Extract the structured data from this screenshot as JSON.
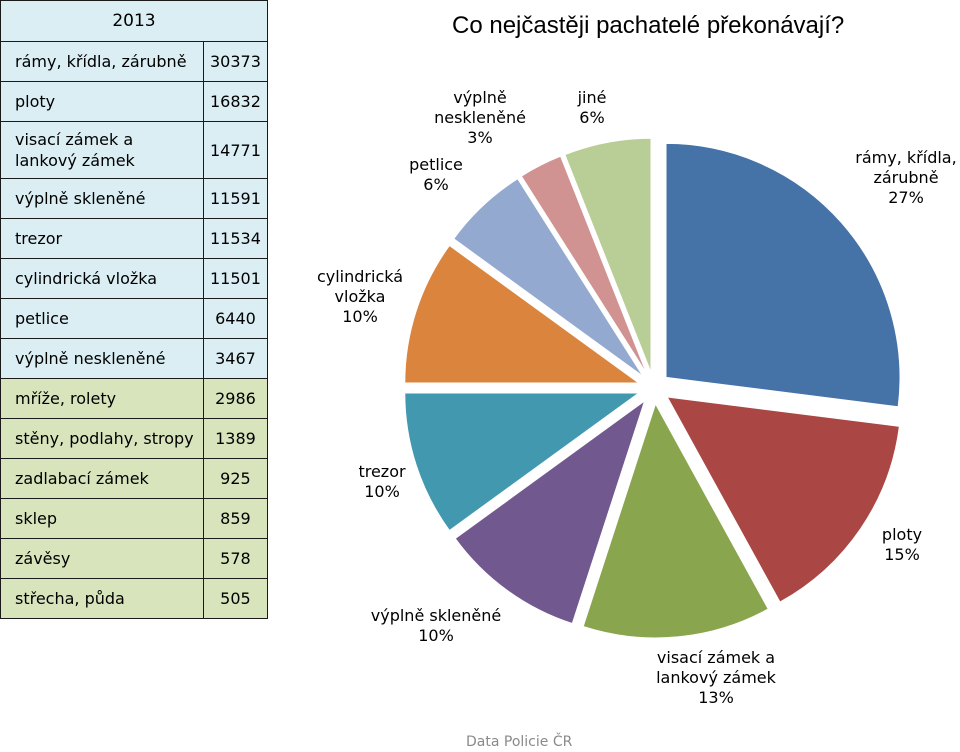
{
  "table": {
    "year": "2013",
    "rows": [
      {
        "label": "rámy, křídla, zárubně",
        "value": "30373"
      },
      {
        "label": "ploty",
        "value": "16832"
      },
      {
        "label": "visací zámek a lankový zámek",
        "value": "14771"
      },
      {
        "label": "výplně skleněné",
        "value": "11591"
      },
      {
        "label": "trezor",
        "value": "11534"
      },
      {
        "label": "cylindrická vložka",
        "value": "11501"
      },
      {
        "label": "petlice",
        "value": "6440"
      },
      {
        "label": "výplně neskleněné",
        "value": "3467"
      },
      {
        "label": "mříže, rolety",
        "value": "2986"
      },
      {
        "label": "stěny, podlahy, stropy",
        "value": "1389"
      },
      {
        "label": "zadlabací zámek",
        "value": "925"
      },
      {
        "label": "sklep",
        "value": "859"
      },
      {
        "label": "závěsy",
        "value": "578"
      },
      {
        "label": "střecha, půda",
        "value": "505"
      }
    ]
  },
  "source": "Data Policie ČR",
  "chart_data": {
    "type": "pie",
    "title": "Co nejčastěji pachatelé překonávají?",
    "slices": [
      {
        "label": "rámy, křídla, zárubně",
        "percent": 27,
        "percent_label": "27%",
        "color": "#4572a7"
      },
      {
        "label": "ploty",
        "percent": 15,
        "percent_label": "15%",
        "color": "#aa4643"
      },
      {
        "label": "visací zámek a lankový zámek",
        "percent": 13,
        "percent_label": "13%",
        "color": "#89a54e"
      },
      {
        "label": "výplně skleněné",
        "percent": 10,
        "percent_label": "10%",
        "color": "#71588f"
      },
      {
        "label": "trezor",
        "percent": 10,
        "percent_label": "10%",
        "color": "#4198af"
      },
      {
        "label": "cylindrická vložka",
        "percent": 10,
        "percent_label": "10%",
        "color": "#db843d"
      },
      {
        "label": "petlice",
        "percent": 6,
        "percent_label": "6%",
        "color": "#93a9cf"
      },
      {
        "label": "výplně neskleněné",
        "percent": 3,
        "percent_label": "3%",
        "color": "#d19392"
      },
      {
        "label": "jiné",
        "percent": 6,
        "percent_label": "6%",
        "color": "#b9cd96"
      }
    ],
    "start_angle_deg": 0,
    "direction": "clockwise",
    "exploded": true
  }
}
